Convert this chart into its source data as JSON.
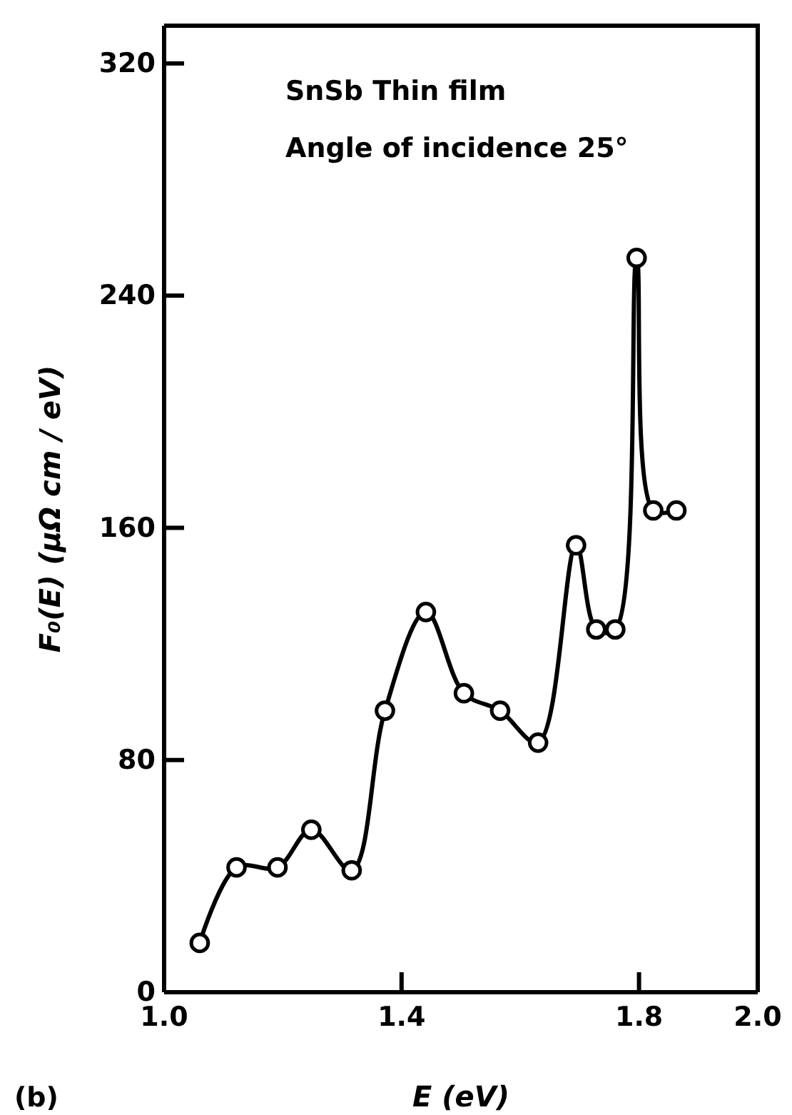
{
  "chart_data": {
    "type": "line",
    "xlabel": "E (eV)",
    "ylabel": "F₀(E)  (μΩ cm / eV)",
    "annotations": [
      "SnSb Thin film",
      "Angle of incidence 25°",
      "(b)"
    ],
    "xlim": [
      1.0,
      2.0
    ],
    "xticks": [
      {
        "value": 1.0,
        "label": "1.0"
      },
      {
        "value": 1.4,
        "label": "1.4"
      },
      {
        "value": 1.8,
        "label": "1.8"
      },
      {
        "value": 2.0,
        "label": "2.0"
      }
    ],
    "ylim": [
      0,
      333
    ],
    "yticks": [
      0,
      80,
      160,
      240,
      320
    ],
    "marker": "circle",
    "line_style": "solid",
    "series": [
      {
        "color": "#000000",
        "x": [
          1.06,
          1.122,
          1.191,
          1.248,
          1.316,
          1.372,
          1.441,
          1.505,
          1.566,
          1.63,
          1.694,
          1.728,
          1.76,
          1.796,
          1.824,
          1.863
        ],
        "values": [
          17,
          43,
          43,
          56,
          42,
          97,
          131,
          103,
          97,
          86,
          154,
          125,
          125,
          253,
          166,
          166
        ]
      }
    ]
  }
}
